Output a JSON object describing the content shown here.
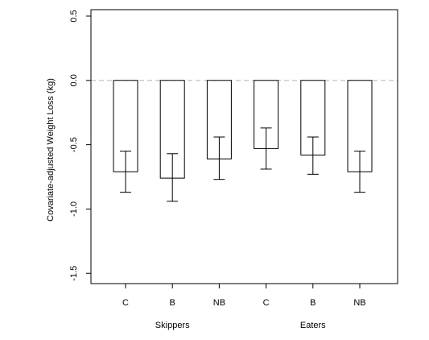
{
  "chart_data": {
    "type": "bar",
    "title": "",
    "xlabel": "",
    "ylabel": "Covariate-adjusted Weight Loss (kg)",
    "ylim": [
      -1.58,
      0.55
    ],
    "yticks": [
      {
        "value": 0.5,
        "label": "0.5"
      },
      {
        "value": 0.0,
        "label": "0.0"
      },
      {
        "value": -0.5,
        "label": "-0.5"
      },
      {
        "value": -1.0,
        "label": "-1.0"
      },
      {
        "value": -1.5,
        "label": "-1.5"
      }
    ],
    "categories": [
      "C",
      "B",
      "NB",
      "C",
      "B",
      "NB"
    ],
    "groups": [
      {
        "label": "Skippers",
        "members": [
          0,
          1,
          2
        ]
      },
      {
        "label": "Eaters",
        "members": [
          3,
          4,
          5
        ]
      }
    ],
    "values": [
      -0.71,
      -0.76,
      -0.61,
      -0.53,
      -0.58,
      -0.71
    ],
    "error_lower": [
      -0.87,
      -0.94,
      -0.77,
      -0.69,
      -0.73,
      -0.87
    ],
    "error_upper": [
      -0.55,
      -0.57,
      -0.44,
      -0.37,
      -0.44,
      -0.55
    ],
    "reference_line": {
      "value": 0.0,
      "style": "dashed",
      "color": "#bbbbbb"
    },
    "grid": false,
    "legend": "none",
    "colors": {
      "bar_fill": "#ffffff",
      "bar_stroke": "#000000",
      "axis": "#000000"
    }
  }
}
